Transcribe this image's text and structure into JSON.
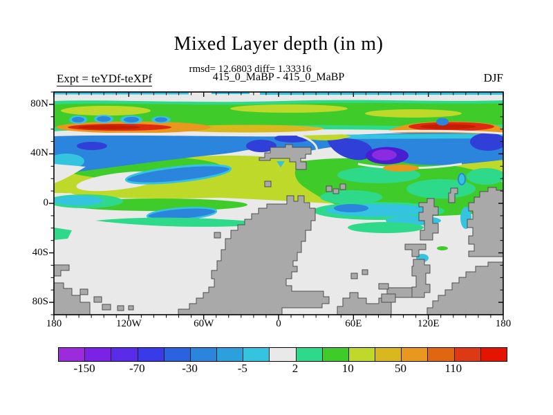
{
  "header": {
    "title": "Mixed Layer depth (in m)",
    "stats_line": "rmsd= 12.6803 diff= 1.33316",
    "experiments_line": "415_0_MaBP - 415_0_MaBP",
    "experiment_label": "Expt = teYDf-teXPf",
    "season_label": "DJF"
  },
  "chart_data": {
    "type": "heatmap",
    "subtype": "filled-contour-difference-map",
    "title": "Mixed Layer depth (in m)",
    "subtitle": "415_0_MaBP - 415_0_MaBP",
    "experiment": "teYDf-teXPf",
    "season": "DJF",
    "units": "m",
    "stats": {
      "rmsd": 12.6803,
      "diff": 1.33316
    },
    "x_axis": {
      "range_deg": [
        -180,
        180
      ],
      "label_values": [
        -180,
        -120,
        -60,
        0,
        60,
        120,
        180
      ],
      "tick_labels": [
        "180",
        "120W",
        "60W",
        "0",
        "60E",
        "120E",
        "180"
      ],
      "minor_tick_step_deg": 10
    },
    "y_axis": {
      "range_deg": [
        -90,
        90
      ],
      "label_values": [
        80,
        40,
        0,
        -40,
        -80
      ],
      "tick_labels": [
        "80N",
        "40N",
        "0",
        "40S",
        "80S"
      ],
      "minor_tick_step_deg": 10
    },
    "colorbar": {
      "segment_colors": [
        "#9B2BDB",
        "#7B22E6",
        "#5A2BE8",
        "#3A3BE8",
        "#2B62E0",
        "#2B85DC",
        "#2BA0DC",
        "#35C4E0",
        "#E9E9E9",
        "#2FD98A",
        "#3FCC2B",
        "#BFD92B",
        "#D9B81F",
        "#E8981F",
        "#E0660F",
        "#DD3914",
        "#E31400"
      ],
      "boundary_labels": [
        "-150",
        "-70",
        "-30",
        "-5",
        "2",
        "10",
        "50",
        "110"
      ],
      "labeled_boundary_indexes": [
        1,
        3,
        5,
        7,
        9,
        11,
        13,
        15
      ]
    },
    "map_colors": {
      "land": "#A9A9A9",
      "land_outline": "#4D4D4D",
      "neutral_ocean": "#E9E9E9",
      "steel_blue": "#2B85DC",
      "dark_blue": "#2F3FD8",
      "cyan": "#35C4E0",
      "spring_green": "#2FD98A",
      "green": "#3FCC2B",
      "yellow_green": "#BFD92B",
      "gold": "#D9B81F",
      "orange": "#E8981F",
      "red": "#DD2A10",
      "dark_red": "#C41E00",
      "violet": "#4A1ED0",
      "purple": "#8A2BE2"
    },
    "notable_features": [
      {
        "region": "~60N zonal band, 180-90W",
        "anomaly": "strong positive (orange/red, +50 to +150 m)"
      },
      {
        "region": "~60N band, 90E-180",
        "anomaly": "strong positive (red, >+110 m)"
      },
      {
        "region": "~45-55N zonal band",
        "anomaly": "negative (blue, -30 to -70 m)"
      },
      {
        "region": "~40N near 100E",
        "anomaly": "strong negative (violet/purple, < -150 m)"
      },
      {
        "region": "~10-35N",
        "anomaly": "weak positive (green/yellow-green, +2 to +50 m)"
      },
      {
        "region": "southern hemisphere ocean",
        "anomaly": "near zero (-5 to +2 m, neutral gray)"
      }
    ]
  }
}
